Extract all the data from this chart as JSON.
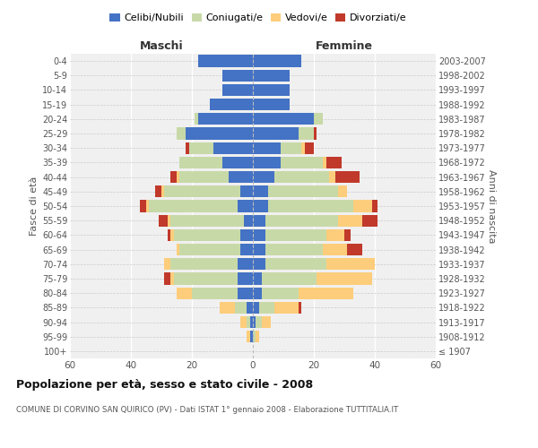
{
  "age_groups": [
    "100+",
    "95-99",
    "90-94",
    "85-89",
    "80-84",
    "75-79",
    "70-74",
    "65-69",
    "60-64",
    "55-59",
    "50-54",
    "45-49",
    "40-44",
    "35-39",
    "30-34",
    "25-29",
    "20-24",
    "15-19",
    "10-14",
    "5-9",
    "0-4"
  ],
  "birth_years": [
    "≤ 1907",
    "1908-1912",
    "1913-1917",
    "1918-1922",
    "1923-1927",
    "1928-1932",
    "1933-1937",
    "1938-1942",
    "1943-1947",
    "1948-1952",
    "1953-1957",
    "1958-1962",
    "1963-1967",
    "1968-1972",
    "1973-1977",
    "1978-1982",
    "1983-1987",
    "1988-1992",
    "1993-1997",
    "1998-2002",
    "2003-2007"
  ],
  "male": {
    "celibe": [
      0,
      1,
      1,
      2,
      5,
      5,
      5,
      4,
      4,
      3,
      5,
      4,
      8,
      10,
      13,
      22,
      18,
      14,
      10,
      10,
      18
    ],
    "coniugato": [
      0,
      0,
      1,
      4,
      15,
      21,
      22,
      20,
      22,
      24,
      29,
      25,
      16,
      14,
      8,
      3,
      1,
      0,
      0,
      0,
      0
    ],
    "vedovo": [
      0,
      1,
      2,
      5,
      5,
      1,
      2,
      1,
      1,
      1,
      1,
      1,
      1,
      0,
      0,
      0,
      0,
      0,
      0,
      0,
      0
    ],
    "divorziato": [
      0,
      0,
      0,
      0,
      0,
      2,
      0,
      0,
      1,
      3,
      2,
      2,
      2,
      0,
      1,
      0,
      0,
      0,
      0,
      0,
      0
    ]
  },
  "female": {
    "nubile": [
      0,
      0,
      1,
      2,
      3,
      3,
      4,
      4,
      4,
      4,
      5,
      5,
      7,
      9,
      9,
      15,
      20,
      12,
      12,
      12,
      16
    ],
    "coniugata": [
      0,
      1,
      2,
      5,
      12,
      18,
      20,
      19,
      20,
      24,
      28,
      23,
      18,
      14,
      7,
      5,
      3,
      0,
      0,
      0,
      0
    ],
    "vedova": [
      0,
      1,
      3,
      8,
      18,
      18,
      16,
      8,
      6,
      8,
      6,
      3,
      2,
      1,
      1,
      0,
      0,
      0,
      0,
      0,
      0
    ],
    "divorziata": [
      0,
      0,
      0,
      1,
      0,
      0,
      0,
      5,
      2,
      5,
      2,
      0,
      8,
      5,
      3,
      1,
      0,
      0,
      0,
      0,
      0
    ]
  },
  "colors": {
    "celibe": "#4472C4",
    "coniugato": "#C8D9A8",
    "vedovo": "#FDCD7B",
    "divorziato": "#C0392B"
  },
  "legend_labels": [
    "Celibi/Nubili",
    "Coniugati/e",
    "Vedovi/e",
    "Divorziati/e"
  ],
  "legend_colors": [
    "#4472C4",
    "#C8D9A8",
    "#FDCD7B",
    "#C0392B"
  ],
  "title": "Popolazione per età, sesso e stato civile - 2008",
  "subtitle": "COMUNE DI CORVINO SAN QUIRICO (PV) - Dati ISTAT 1° gennaio 2008 - Elaborazione TUTTITALIA.IT",
  "xlabel_left": "Maschi",
  "xlabel_right": "Femmine",
  "ylabel_left": "Fasce di età",
  "ylabel_right": "Anni di nascita",
  "xlim": 60,
  "background_color": "#ffffff",
  "plot_bg_color": "#f0f0f0"
}
